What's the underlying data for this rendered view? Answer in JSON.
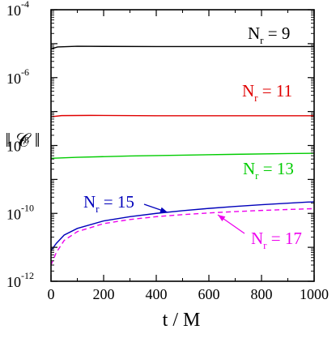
{
  "chart_data": {
    "type": "line",
    "xlabel": "t / M",
    "ylabel": "‖ 𝒞 ‖",
    "xlim": [
      0,
      1000
    ],
    "ylim": [
      1e-12,
      0.0001
    ],
    "yscale": "log",
    "x_ticks": [
      "0",
      "200",
      "400",
      "600",
      "800",
      "1000"
    ],
    "y_ticks": [
      {
        "base": "10",
        "exp": "-12"
      },
      {
        "base": "10",
        "exp": "-10"
      },
      {
        "base": "10",
        "exp": "-8"
      },
      {
        "base": "10",
        "exp": "-6"
      },
      {
        "base": "10",
        "exp": "-4"
      }
    ],
    "grid": false,
    "series": [
      {
        "name": "N_r = 9",
        "label_main": "N",
        "label_sub": "r",
        "label_rest": " = 9",
        "color": "#000000",
        "dash": "",
        "points": [
          [
            0,
            7e-06
          ],
          [
            25,
            8e-06
          ],
          [
            100,
            8.4e-06
          ],
          [
            200,
            8.3e-06
          ],
          [
            400,
            8.2e-06
          ],
          [
            600,
            8.2e-06
          ],
          [
            800,
            8.2e-06
          ],
          [
            1000,
            8.2e-06
          ]
        ]
      },
      {
        "name": "N_r = 11",
        "label_main": "N",
        "label_sub": "r",
        "label_rest": " = 11",
        "color": "#e00000",
        "dash": "",
        "points": [
          [
            0,
            7e-08
          ],
          [
            40,
            7.6e-08
          ],
          [
            150,
            7.7e-08
          ],
          [
            400,
            7.5e-08
          ],
          [
            700,
            7.5e-08
          ],
          [
            1000,
            7.5e-08
          ]
        ]
      },
      {
        "name": "N_r = 13",
        "label_main": "N",
        "label_sub": "r",
        "label_rest": " = 13",
        "color": "#00cc00",
        "dash": "",
        "points": [
          [
            0,
            4.2e-09
          ],
          [
            100,
            4.5e-09
          ],
          [
            300,
            4.9e-09
          ],
          [
            500,
            5.2e-09
          ],
          [
            700,
            5.5e-09
          ],
          [
            900,
            5.8e-09
          ],
          [
            1000,
            5.9e-09
          ]
        ]
      },
      {
        "name": "N_r = 15",
        "label_main": "N",
        "label_sub": "r",
        "label_rest": " = 15",
        "color": "#0000bb",
        "dash": "",
        "points": [
          [
            0,
            8e-12
          ],
          [
            20,
            1.3e-11
          ],
          [
            50,
            2.3e-11
          ],
          [
            100,
            3.6e-11
          ],
          [
            200,
            6e-11
          ],
          [
            300,
            8e-11
          ],
          [
            400,
            1e-10
          ],
          [
            500,
            1.2e-10
          ],
          [
            600,
            1.4e-10
          ],
          [
            700,
            1.6e-10
          ],
          [
            800,
            1.8e-10
          ],
          [
            900,
            2e-10
          ],
          [
            1000,
            2.2e-10
          ]
        ]
      },
      {
        "name": "N_r = 17",
        "label_main": "N",
        "label_sub": "r",
        "label_rest": " = 17",
        "color": "#ee00ee",
        "dash": "6,4",
        "points": [
          [
            0,
            3e-12
          ],
          [
            20,
            7e-12
          ],
          [
            50,
            1.6e-11
          ],
          [
            100,
            2.9e-11
          ],
          [
            200,
            5e-11
          ],
          [
            300,
            6.6e-11
          ],
          [
            400,
            8e-11
          ],
          [
            500,
            9.2e-11
          ],
          [
            600,
            1.03e-10
          ],
          [
            700,
            1.13e-10
          ],
          [
            800,
            1.22e-10
          ],
          [
            900,
            1.3e-10
          ],
          [
            1000,
            1.38e-10
          ]
        ]
      }
    ]
  }
}
